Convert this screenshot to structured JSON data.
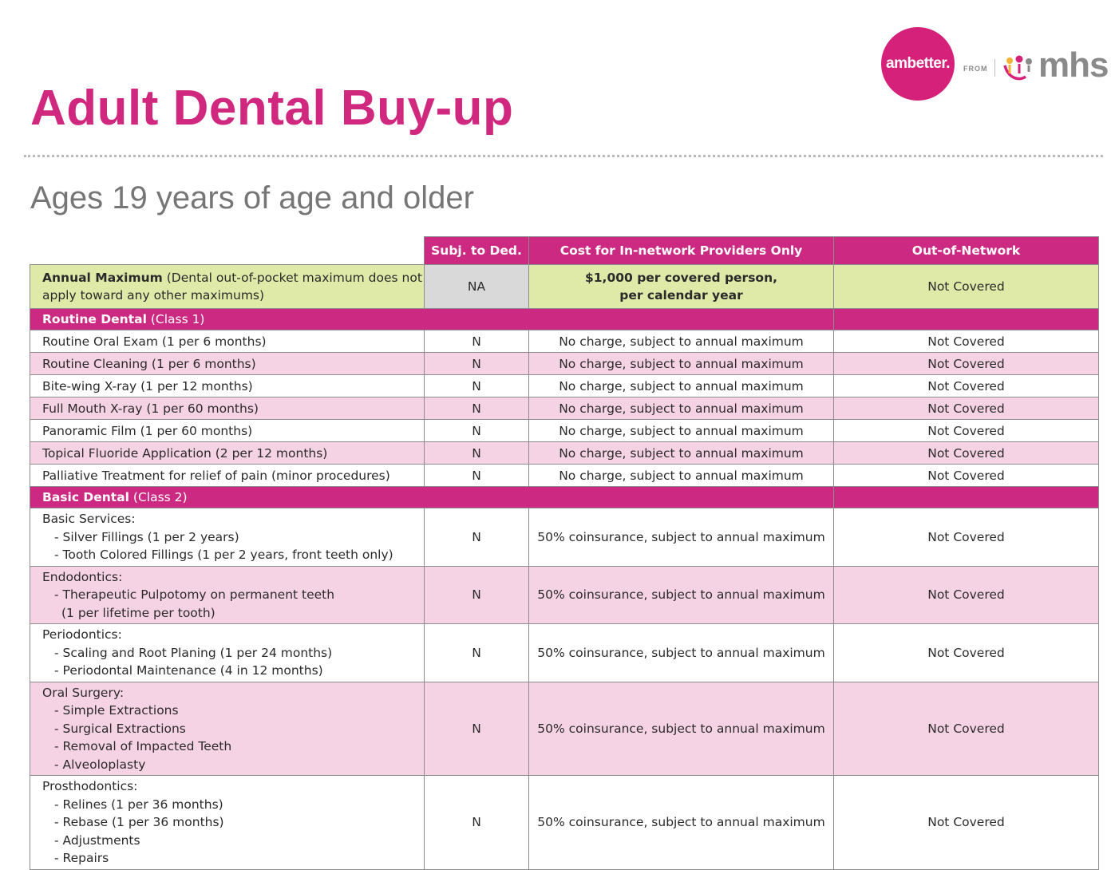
{
  "header": {
    "title": "Adult Dental Buy-up",
    "subtitle": "Ages 19 years of age and older"
  },
  "logo": {
    "brand": "ambetter.",
    "from": "FROM",
    "partner": "mhs",
    "brand_color": "#d6217b"
  },
  "table": {
    "columns": [
      "Subj. to Ded.",
      "Cost for In-network Providers Only",
      "Out-of-Network"
    ],
    "annual_max": {
      "label_bold": "Annual Maximum",
      "label_rest": " (Dental out-of-pocket maximum does not apply toward any other maximums)",
      "ded": "NA",
      "cost_line1": "$1,000 per covered person,",
      "cost_line2": "per calendar year",
      "out": "Not Covered"
    },
    "routine_section": {
      "bold": "Routine Dental",
      "rest": " (Class 1)"
    },
    "routine_rows": [
      {
        "label": "Routine Oral Exam (1 per 6 months)",
        "ded": "N",
        "cost": "No charge, subject to annual maximum",
        "out": "Not Covered"
      },
      {
        "label": "Routine Cleaning (1 per 6 months)",
        "ded": "N",
        "cost": "No charge, subject to annual maximum",
        "out": "Not Covered"
      },
      {
        "label": "Bite-wing X-ray (1 per 12 months)",
        "ded": "N",
        "cost": "No charge, subject to annual maximum",
        "out": "Not Covered"
      },
      {
        "label": "Full Mouth X-ray (1 per 60 months)",
        "ded": "N",
        "cost": "No charge, subject to annual maximum",
        "out": "Not Covered"
      },
      {
        "label": "Panoramic Film (1 per 60 months)",
        "ded": "N",
        "cost": "No charge, subject to annual maximum",
        "out": "Not Covered"
      },
      {
        "label": "Topical Fluoride Application (2 per 12 months)",
        "ded": "N",
        "cost": "No charge, subject to annual maximum",
        "out": "Not Covered"
      },
      {
        "label": "Palliative Treatment for relief of pain (minor procedures)",
        "ded": "N",
        "cost": "No charge, subject to annual maximum",
        "out": "Not Covered"
      }
    ],
    "basic_section": {
      "bold": "Basic Dental",
      "rest": " (Class 2)"
    },
    "basic_rows": [
      {
        "heading": "Basic Services:",
        "items": [
          "- Silver Fillings (1 per 2 years)",
          "- Tooth Colored Fillings (1 per 2 years, front teeth only)"
        ],
        "ded": "N",
        "cost": "50% coinsurance, subject to annual maximum",
        "out": "Not Covered"
      },
      {
        "heading": "Endodontics:",
        "items": [
          "- Therapeutic Pulpotomy on permanent teeth",
          "(1 per lifetime per tooth)"
        ],
        "ded": "N",
        "cost": "50% coinsurance, subject to annual maximum",
        "out": "Not Covered"
      },
      {
        "heading": "Periodontics:",
        "items": [
          "- Scaling and Root Planing (1 per 24 months)",
          "- Periodontal Maintenance (4 in 12 months)"
        ],
        "ded": "N",
        "cost": "50% coinsurance, subject to annual maximum",
        "out": "Not Covered"
      },
      {
        "heading": "Oral Surgery:",
        "items": [
          "- Simple Extractions",
          "- Surgical Extractions",
          "- Removal of Impacted Teeth",
          "- Alveoloplasty"
        ],
        "ded": "N",
        "cost": "50% coinsurance, subject to annual maximum",
        "out": "Not Covered"
      },
      {
        "heading": "Prosthodontics:",
        "items": [
          "- Relines (1 per 36 months)",
          "- Rebase (1 per 36 months)",
          "- Adjustments",
          "- Repairs"
        ],
        "ded": "N",
        "cost": "50% coinsurance, subject to annual maximum",
        "out": "Not Covered"
      }
    ]
  }
}
